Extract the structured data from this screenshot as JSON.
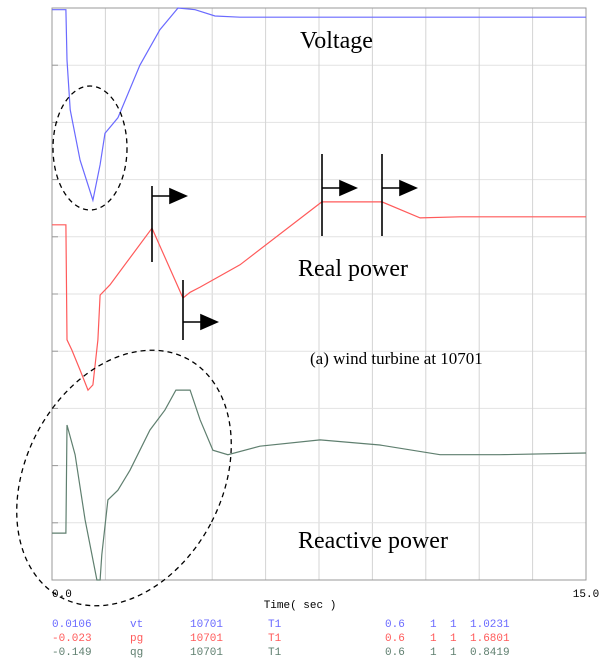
{
  "chart_data": {
    "type": "line",
    "xlabel": "Time( sec )",
    "xlim": [
      0,
      15
    ],
    "xticks": [
      {
        "value": 0,
        "label": "0.0"
      },
      {
        "value": 15,
        "label": "15.0"
      }
    ],
    "ylim": [
      0,
      100
    ],
    "grid": true,
    "annotations": [
      "Voltage",
      "Real power",
      "(a) wind turbine at 10701",
      "Reactive power"
    ],
    "series": [
      {
        "name": "vt",
        "color": "#6a6aff",
        "legend_values": [
          "0.0106",
          "10701",
          "T1",
          "0.6",
          "1",
          "1",
          "1.0231"
        ],
        "x": [
          0,
          0.39,
          0.42,
          0.51,
          0.79,
          1.15,
          1.35,
          1.49,
          1.85,
          2.47,
          3.03,
          3.54,
          4.02,
          4.58,
          5.28,
          15
        ],
        "values": [
          99.7,
          99.7,
          90.9,
          82.2,
          73.4,
          66.4,
          72.6,
          78.1,
          80.8,
          90.0,
          96.2,
          100,
          99.7,
          98.6,
          98.4,
          98.4
        ]
      },
      {
        "name": "pg",
        "color": "#ff5a5a",
        "legend_values": [
          "-0.023",
          "10701",
          "T1",
          "0.6",
          "1",
          "1",
          "1.6801"
        ],
        "x": [
          0,
          0.39,
          0.42,
          0.56,
          0.79,
          1.01,
          1.15,
          1.29,
          1.35,
          1.63,
          2.81,
          3.68,
          3.88,
          4.16,
          5.28,
          7.58,
          9.27,
          10.34,
          11.46,
          15
        ],
        "values": [
          62.1,
          62.1,
          42.0,
          40.2,
          36.7,
          33.2,
          34.1,
          42.0,
          49.8,
          51.6,
          61.5,
          49.3,
          50.3,
          51.2,
          55.1,
          66.1,
          66.1,
          63.3,
          63.5,
          63.5
        ]
      },
      {
        "name": "qg",
        "color": "#5f7f6f",
        "legend_values": [
          "-0.149",
          "10701",
          "T1",
          "0.6",
          "1",
          "1",
          "0.8419"
        ],
        "x": [
          0,
          0.39,
          0.42,
          0.65,
          0.93,
          1.26,
          1.35,
          1.4,
          1.57,
          1.85,
          2.19,
          2.75,
          3.17,
          3.48,
          3.88,
          4.16,
          4.52,
          4.94,
          5.84,
          7.53,
          9.21,
          10.9,
          12.58,
          15
        ],
        "values": [
          8.2,
          8.2,
          27.1,
          21.9,
          10.5,
          0,
          0,
          4.4,
          14.0,
          15.7,
          19.2,
          26.2,
          29.7,
          33.2,
          33.2,
          28.0,
          22.7,
          21.9,
          23.4,
          24.5,
          23.6,
          21.9,
          21.9,
          22.2
        ]
      }
    ]
  }
}
